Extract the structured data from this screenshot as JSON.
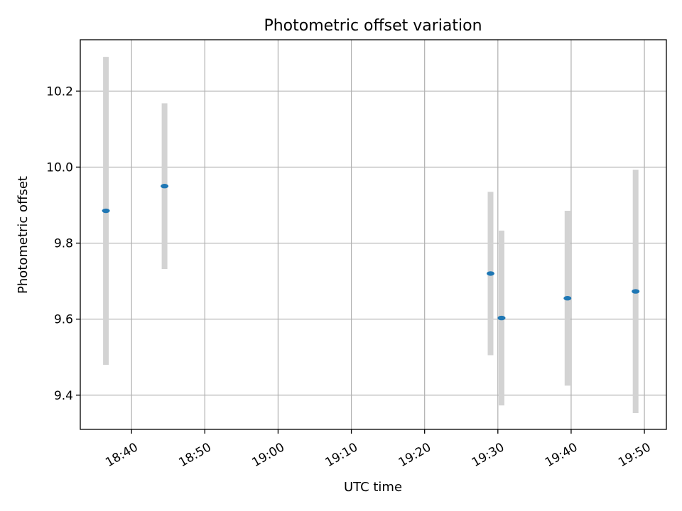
{
  "chart_data": {
    "type": "scatter",
    "title": "Photometric offset variation",
    "xlabel": "UTC time",
    "ylabel": "Photometric offset",
    "x_axis": {
      "kind": "time",
      "range": [
        "18:33",
        "19:53"
      ],
      "ticks": [
        "18:40",
        "18:50",
        "19:00",
        "19:10",
        "19:20",
        "19:30",
        "19:40",
        "19:50"
      ],
      "tick_rotation_deg": 30
    },
    "y_axis": {
      "range": [
        9.31,
        10.335
      ],
      "ticks": [
        9.4,
        9.6,
        9.8,
        10.0,
        10.2
      ],
      "tick_labels": [
        "9.4",
        "9.6",
        "9.8",
        "10.0",
        "10.2"
      ]
    },
    "grid": true,
    "marker_color": "#1f77b4",
    "errorbar_color": "#d3d3d3",
    "points": [
      {
        "x": "18:36.5",
        "y": 9.885,
        "err": 0.405
      },
      {
        "x": "18:44.5",
        "y": 9.95,
        "err": 0.218
      },
      {
        "x": "19:29.0",
        "y": 9.72,
        "err": 0.215
      },
      {
        "x": "19:30.5",
        "y": 9.603,
        "err": 0.23
      },
      {
        "x": "19:39.5",
        "y": 9.655,
        "err": 0.23
      },
      {
        "x": "19:48.8",
        "y": 9.673,
        "err": 0.32
      }
    ]
  }
}
